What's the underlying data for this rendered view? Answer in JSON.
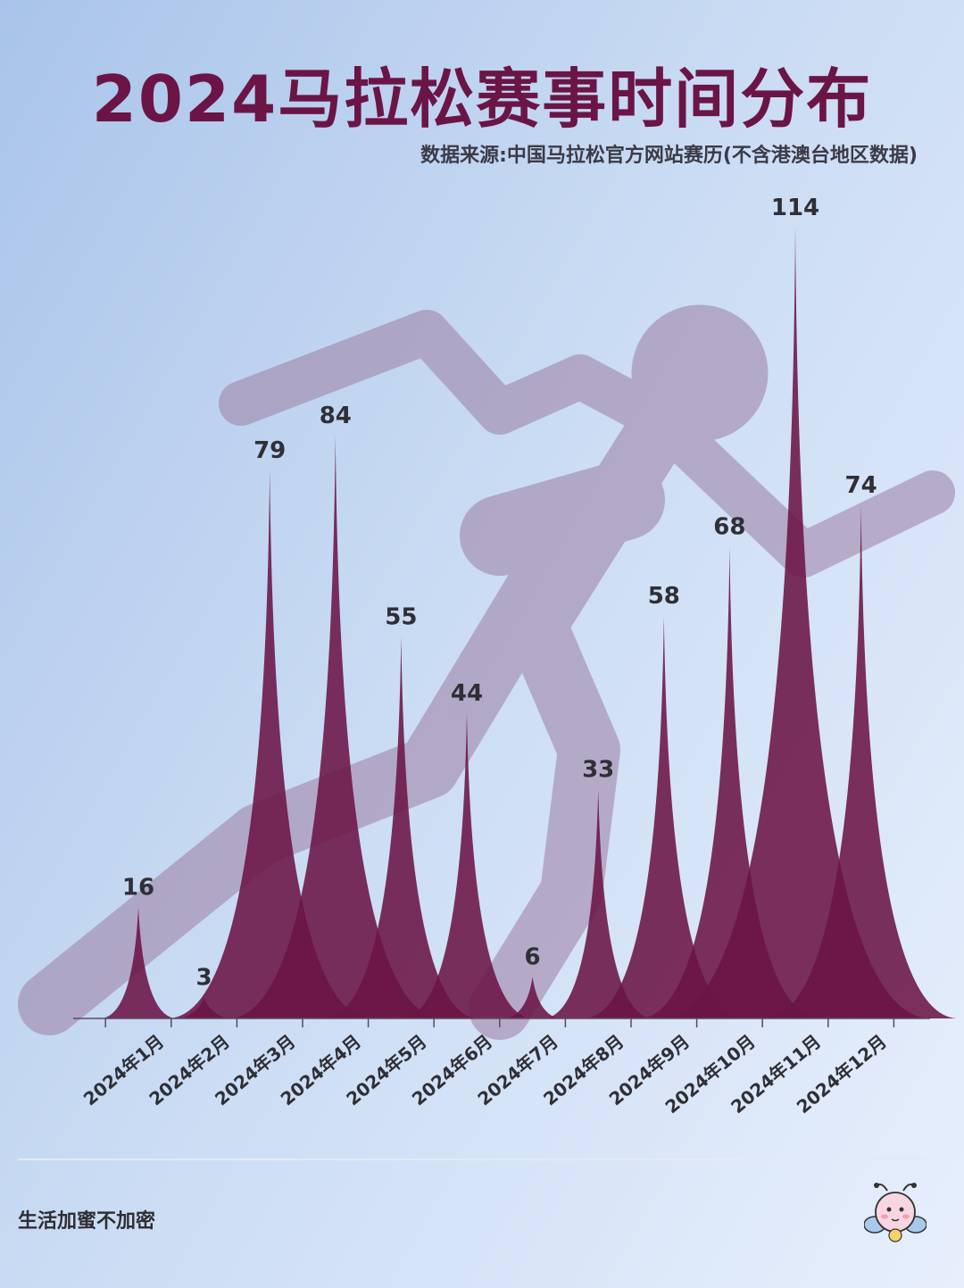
{
  "title": "2024马拉松赛事时间分布",
  "source_note": "数据来源:中国马拉松官方网站赛历(不含港澳台地区数据)",
  "footer": {
    "brand": "生活加蜜不加密"
  },
  "colors": {
    "peak": "#6b1546",
    "runner": "#9c7ea3",
    "label": "#2f2f36"
  },
  "icons": {
    "background": "runner-silhouette-icon",
    "mascot": "bee-mascot-icon"
  },
  "chart_data": {
    "type": "area",
    "categories": [
      "2024年1月",
      "2024年2月",
      "2024年3月",
      "2024年4月",
      "2024年5月",
      "2024年6月",
      "2024年7月",
      "2024年8月",
      "2024年9月",
      "2024年10月",
      "2024年11月",
      "2024年12月"
    ],
    "values": [
      16,
      3,
      79,
      84,
      55,
      44,
      6,
      33,
      58,
      68,
      114,
      74
    ],
    "title": "2024马拉松赛事时间分布",
    "xlabel": "",
    "ylabel": "",
    "ylim": [
      0,
      114
    ],
    "grid": false,
    "legend": "none",
    "data_labels": true
  }
}
